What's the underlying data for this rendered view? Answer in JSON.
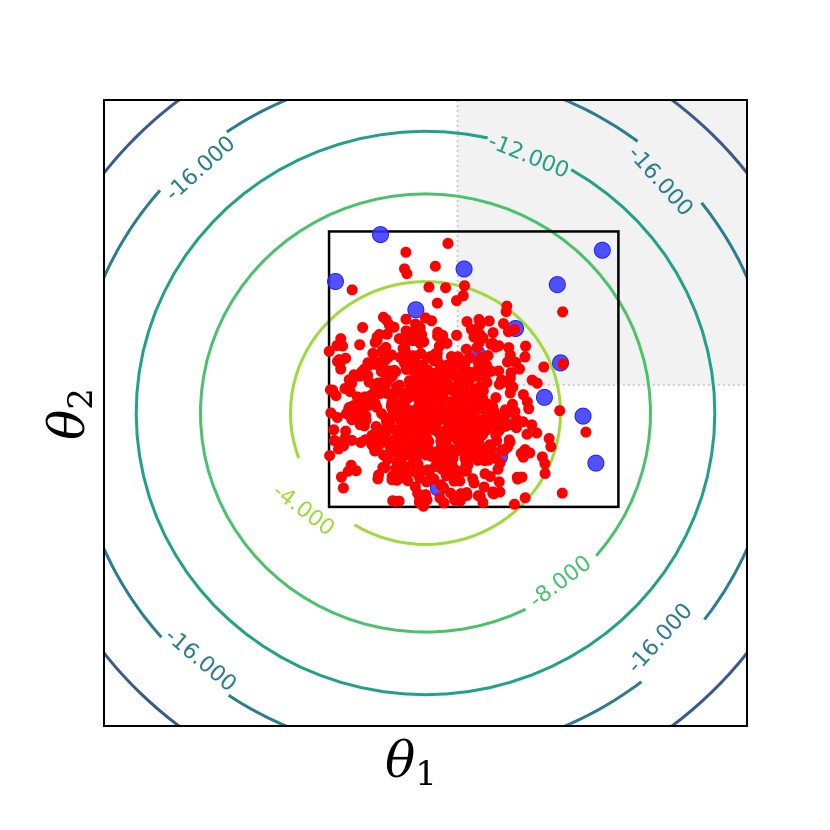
{
  "chart_data": {
    "type": "scatter",
    "xlabel": "θ",
    "xlabel_sub": "1",
    "ylabel": "θ",
    "ylabel_sub": "2",
    "xlim": [
      -1,
      1
    ],
    "ylim": [
      -1,
      1
    ],
    "ticks_visible": false,
    "grid": false,
    "legend": "none",
    "contours": [
      {
        "level": -4,
        "label": "-4.000",
        "radius": 0.42,
        "color": "#9fd93a"
      },
      {
        "level": -8,
        "label": "-8.000",
        "radius": 0.7,
        "color": "#4ac26d"
      },
      {
        "level": -12,
        "label": "-12.000",
        "radius": 0.9,
        "color": "#21a187"
      },
      {
        "level": -16,
        "label": "-16.000",
        "radius": 1.09,
        "color": "#2a7d8e"
      },
      {
        "level": -20,
        "label": "",
        "radius": 1.26,
        "color": "#3b5a8c"
      },
      {
        "level": -24,
        "label": "",
        "radius": 1.43,
        "color": "#472d7b"
      }
    ],
    "contour_labels": [
      {
        "text": "-4.000",
        "level": -4,
        "x": -0.38,
        "y": -0.31,
        "angle": 37
      },
      {
        "text": "-8.000",
        "level": -8,
        "x": 0.42,
        "y": -0.54,
        "angle": -37
      },
      {
        "text": "-12.000",
        "level": -12,
        "x": 0.32,
        "y": 0.82,
        "angle": 22
      },
      {
        "text": "-16.000",
        "level": -16,
        "x": -0.7,
        "y": 0.78,
        "angle": -42
      },
      {
        "text": "-16.000",
        "level": -16,
        "x": 0.73,
        "y": 0.74,
        "angle": 48
      },
      {
        "text": "-16.000",
        "level": -16,
        "x": -0.7,
        "y": -0.79,
        "angle": 40
      },
      {
        "text": "-16.000",
        "level": -16,
        "x": 0.73,
        "y": -0.72,
        "angle": -48
      }
    ],
    "shaded_region": {
      "x": [
        0.1,
        1.0
      ],
      "y": [
        0.09,
        1.0
      ],
      "color": "#f2f2f2"
    },
    "box": {
      "x": [
        -0.3,
        0.6
      ],
      "y": [
        -0.3,
        0.58
      ]
    },
    "centre": [
      0.0,
      0.0
    ],
    "red_points": {
      "count": 750,
      "mean": [
        0.02,
        0.0
      ],
      "std": [
        0.14,
        0.14
      ],
      "x": [
        -0.3,
        0.6
      ],
      "y": [
        -0.3,
        0.58
      ],
      "color": "#ff0000"
    },
    "blue_points": {
      "color": "#3333ff",
      "x": [
        -0.14,
        -0.28,
        -0.03,
        0.12,
        0.41,
        0.55,
        0.28,
        0.42,
        0.16,
        0.37,
        0.49,
        0.53,
        0.04,
        0.23,
        -0.23
      ],
      "y": [
        0.57,
        0.42,
        0.33,
        0.46,
        0.41,
        0.52,
        0.27,
        0.16,
        0.19,
        0.05,
        -0.01,
        -0.16,
        -0.24,
        -0.14,
        0.01
      ]
    }
  }
}
